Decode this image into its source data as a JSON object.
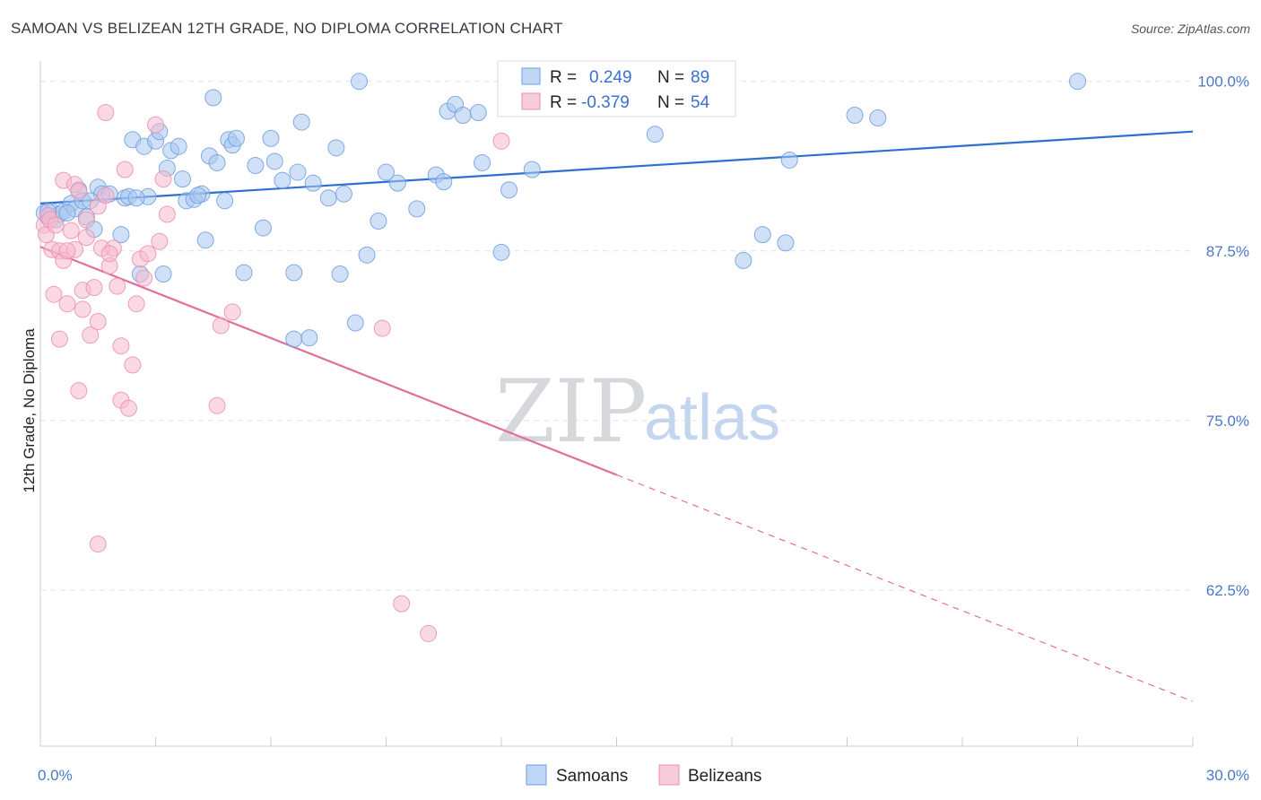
{
  "title": "SAMOAN VS BELIZEAN 12TH GRADE, NO DIPLOMA CORRELATION CHART",
  "source": "Source: ZipAtlas.com",
  "watermark": {
    "zip": "ZIP",
    "atlas": "atlas"
  },
  "colors": {
    "blue_fill": "#a9c8f0",
    "blue_stroke": "#6d9ee0",
    "blue_line": "#2e6fd0",
    "pink_fill": "#f6b9cd",
    "pink_stroke": "#eb8fae",
    "pink_line": "#e0709a",
    "tick_text": "#4a78c8",
    "grid": "#e2e4e8"
  },
  "legend": {
    "rows": [
      {
        "r_label": "R =",
        "r_value": "0.249",
        "n_label": "N =",
        "n_value": "89",
        "series": "samoans"
      },
      {
        "r_label": "R =",
        "r_value": "-0.379",
        "n_label": "N =",
        "n_value": "54",
        "series": "belizeans"
      }
    ]
  },
  "chart_data": {
    "type": "scatter",
    "title": "SAMOAN VS BELIZEAN 12TH GRADE, NO DIPLOMA CORRELATION CHART",
    "xlabel": "",
    "ylabel": "12th Grade, No Diploma",
    "xlim": [
      0.0,
      30.0
    ],
    "ylim": [
      51.0,
      101.5
    ],
    "x_tick_labels": [
      "0.0%",
      "30.0%"
    ],
    "y_ticks": [
      100.0,
      87.5,
      75.0,
      62.5
    ],
    "y_tick_labels": [
      "100.0%",
      "87.5%",
      "75.0%",
      "62.5%"
    ],
    "grid": true,
    "legend_position": "top-center",
    "series": [
      {
        "name": "Samoans",
        "color": "#a9c8f0",
        "trend": {
          "x": [
            0.0,
            30.0
          ],
          "y": [
            91.0,
            96.3
          ],
          "style": "solid"
        },
        "points": [
          [
            0.1,
            90.3
          ],
          [
            0.2,
            90.0
          ],
          [
            0.3,
            90.4
          ],
          [
            0.4,
            89.8
          ],
          [
            0.5,
            90.2
          ],
          [
            0.6,
            90.4
          ],
          [
            0.8,
            91.0
          ],
          [
            0.9,
            90.6
          ],
          [
            1.0,
            92.0
          ],
          [
            1.1,
            91.2
          ],
          [
            1.2,
            90.0
          ],
          [
            1.4,
            89.1
          ],
          [
            1.5,
            92.2
          ],
          [
            1.6,
            91.7
          ],
          [
            1.8,
            91.7
          ],
          [
            2.1,
            88.7
          ],
          [
            2.2,
            91.4
          ],
          [
            2.3,
            91.5
          ],
          [
            2.4,
            95.7
          ],
          [
            2.6,
            85.8
          ],
          [
            2.7,
            95.2
          ],
          [
            2.8,
            91.5
          ],
          [
            3.0,
            95.6
          ],
          [
            3.1,
            96.3
          ],
          [
            3.2,
            85.8
          ],
          [
            3.3,
            93.6
          ],
          [
            3.4,
            94.9
          ],
          [
            3.6,
            95.2
          ],
          [
            3.7,
            92.8
          ],
          [
            3.8,
            91.2
          ],
          [
            4.0,
            91.3
          ],
          [
            4.2,
            91.7
          ],
          [
            4.3,
            88.3
          ],
          [
            4.4,
            94.5
          ],
          [
            4.5,
            98.8
          ],
          [
            4.6,
            94.0
          ],
          [
            4.8,
            91.2
          ],
          [
            4.9,
            95.7
          ],
          [
            5.0,
            95.3
          ],
          [
            5.1,
            95.8
          ],
          [
            5.3,
            85.9
          ],
          [
            5.6,
            93.8
          ],
          [
            5.8,
            89.2
          ],
          [
            6.0,
            95.8
          ],
          [
            6.1,
            94.1
          ],
          [
            6.3,
            92.7
          ],
          [
            6.6,
            85.9
          ],
          [
            6.6,
            81.0
          ],
          [
            6.7,
            93.3
          ],
          [
            6.8,
            97.0
          ],
          [
            7.0,
            81.1
          ],
          [
            7.1,
            92.5
          ],
          [
            7.5,
            91.4
          ],
          [
            7.7,
            95.1
          ],
          [
            7.8,
            85.8
          ],
          [
            7.9,
            91.7
          ],
          [
            8.2,
            82.2
          ],
          [
            8.3,
            100.0
          ],
          [
            8.5,
            87.2
          ],
          [
            8.8,
            89.7
          ],
          [
            9.0,
            93.3
          ],
          [
            9.3,
            92.5
          ],
          [
            9.8,
            90.6
          ],
          [
            10.3,
            93.1
          ],
          [
            10.5,
            92.6
          ],
          [
            10.6,
            97.8
          ],
          [
            10.8,
            98.3
          ],
          [
            11.0,
            97.5
          ],
          [
            11.4,
            97.7
          ],
          [
            11.5,
            94.0
          ],
          [
            12.0,
            87.4
          ],
          [
            12.2,
            92.0
          ],
          [
            12.8,
            93.5
          ],
          [
            13.9,
            98.2
          ],
          [
            14.0,
            100.0
          ],
          [
            14.6,
            99.0
          ],
          [
            16.0,
            96.1
          ],
          [
            18.3,
            86.8
          ],
          [
            18.8,
            88.7
          ],
          [
            19.4,
            88.1
          ],
          [
            19.5,
            94.2
          ],
          [
            21.2,
            97.5
          ],
          [
            21.8,
            97.3
          ],
          [
            27.0,
            100.0
          ],
          [
            0.2,
            90.4
          ],
          [
            0.7,
            90.3
          ],
          [
            1.3,
            91.2
          ],
          [
            2.5,
            91.4
          ],
          [
            4.1,
            91.6
          ]
        ]
      },
      {
        "name": "Belizeans",
        "color": "#f6b9cd",
        "trend": {
          "x": [
            0.0,
            15.0
          ],
          "y": [
            87.8,
            71.0
          ],
          "style": "solid",
          "extension": {
            "x": [
              15.0,
              30.0
            ],
            "y": [
              71.0,
              54.3
            ],
            "style": "dashed"
          }
        },
        "points": [
          [
            0.1,
            89.4
          ],
          [
            0.15,
            88.7
          ],
          [
            0.2,
            90.1
          ],
          [
            0.25,
            89.8
          ],
          [
            0.3,
            87.6
          ],
          [
            0.35,
            84.3
          ],
          [
            0.4,
            89.4
          ],
          [
            0.5,
            87.5
          ],
          [
            0.5,
            81.0
          ],
          [
            0.6,
            86.8
          ],
          [
            0.6,
            92.7
          ],
          [
            0.7,
            83.6
          ],
          [
            0.8,
            89.0
          ],
          [
            0.9,
            87.6
          ],
          [
            0.9,
            92.4
          ],
          [
            1.0,
            77.2
          ],
          [
            1.0,
            91.9
          ],
          [
            1.1,
            83.2
          ],
          [
            1.1,
            84.6
          ],
          [
            1.2,
            88.5
          ],
          [
            1.2,
            89.8
          ],
          [
            1.3,
            81.3
          ],
          [
            1.4,
            84.8
          ],
          [
            1.5,
            82.3
          ],
          [
            1.5,
            65.9
          ],
          [
            1.5,
            90.8
          ],
          [
            1.6,
            87.7
          ],
          [
            1.7,
            91.6
          ],
          [
            1.7,
            97.7
          ],
          [
            1.8,
            86.4
          ],
          [
            1.9,
            87.7
          ],
          [
            2.0,
            84.9
          ],
          [
            2.1,
            80.5
          ],
          [
            2.1,
            76.5
          ],
          [
            2.2,
            93.5
          ],
          [
            2.3,
            75.9
          ],
          [
            2.4,
            79.1
          ],
          [
            2.5,
            83.6
          ],
          [
            2.6,
            86.9
          ],
          [
            2.7,
            85.5
          ],
          [
            2.8,
            87.3
          ],
          [
            3.0,
            96.8
          ],
          [
            3.1,
            88.2
          ],
          [
            3.2,
            92.8
          ],
          [
            3.3,
            90.2
          ],
          [
            4.6,
            76.1
          ],
          [
            4.7,
            82.0
          ],
          [
            5.0,
            83.0
          ],
          [
            8.9,
            81.8
          ],
          [
            9.4,
            61.5
          ],
          [
            10.1,
            59.3
          ],
          [
            12.0,
            95.6
          ],
          [
            0.7,
            87.5
          ],
          [
            1.8,
            87.3
          ]
        ]
      }
    ]
  },
  "bottom_legend": {
    "items": [
      {
        "label": "Samoans",
        "series": "samoans"
      },
      {
        "label": "Belizeans",
        "series": "belizeans"
      }
    ]
  }
}
